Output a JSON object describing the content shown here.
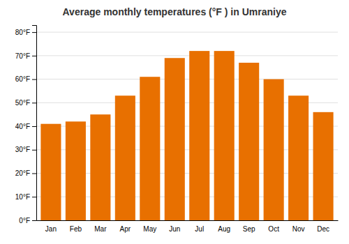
{
  "chart_data": {
    "type": "bar",
    "title": "Average monthly temperatures (°F ) in Umraniye",
    "categories": [
      "Jan",
      "Feb",
      "Mar",
      "Apr",
      "May",
      "Jun",
      "Jul",
      "Aug",
      "Sep",
      "Oct",
      "Nov",
      "Dec"
    ],
    "values": [
      41,
      42,
      45,
      53,
      61,
      69,
      72,
      72,
      67,
      60,
      53,
      46
    ],
    "color": "#E87000",
    "ylim": [
      0,
      83
    ],
    "yticks": [
      {
        "value": 0,
        "label": "0°F"
      },
      {
        "value": 10,
        "label": "10°F"
      },
      {
        "value": 20,
        "label": "20°F"
      },
      {
        "value": 30,
        "label": "30°F"
      },
      {
        "value": 40,
        "label": "40°F"
      },
      {
        "value": 50,
        "label": "50°F"
      },
      {
        "value": 60,
        "label": "60°F"
      },
      {
        "value": 70,
        "label": "70°F"
      },
      {
        "value": 80,
        "label": "80°F"
      }
    ],
    "grid": true
  }
}
